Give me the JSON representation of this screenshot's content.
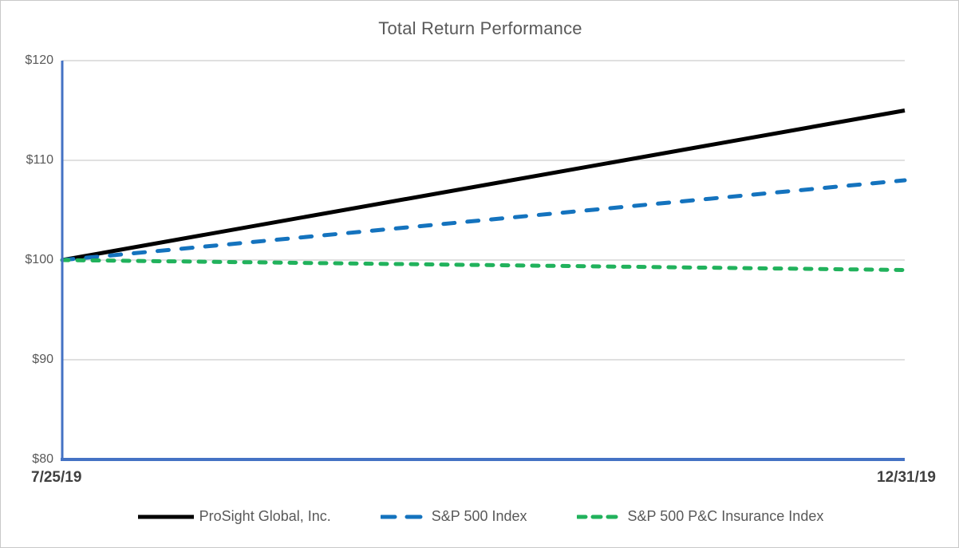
{
  "chart_data": {
    "type": "line",
    "title": "Total Return Performance",
    "x": [
      "7/25/19",
      "12/31/19"
    ],
    "series": [
      {
        "name": "ProSight Global, Inc.",
        "values": [
          100,
          115
        ],
        "color": "#000000",
        "line_style": "solid"
      },
      {
        "name": "S&P 500 Index",
        "values": [
          100,
          108
        ],
        "color": "#1473be",
        "line_style": "dashed"
      },
      {
        "name": "S&P 500 P&C Insurance Index",
        "values": [
          100,
          99
        ],
        "color": "#21b25c",
        "line_style": "short-dashed"
      }
    ],
    "ylim": [
      80,
      120
    ],
    "y_ticks": [
      {
        "label": "$120",
        "value": 120
      },
      {
        "label": "$110",
        "value": 110
      },
      {
        "label": "$100",
        "value": 100
      },
      {
        "label": "$90",
        "value": 90
      },
      {
        "label": "$80",
        "value": 80
      }
    ],
    "xlabel": "",
    "ylabel": "",
    "grid": true,
    "legend_position": "bottom",
    "colors": {
      "axis": "#4472c4",
      "gridline": "#d6d6d6",
      "title_text": "#595959",
      "tick_text": "#595959",
      "date_text": "#404040"
    }
  }
}
